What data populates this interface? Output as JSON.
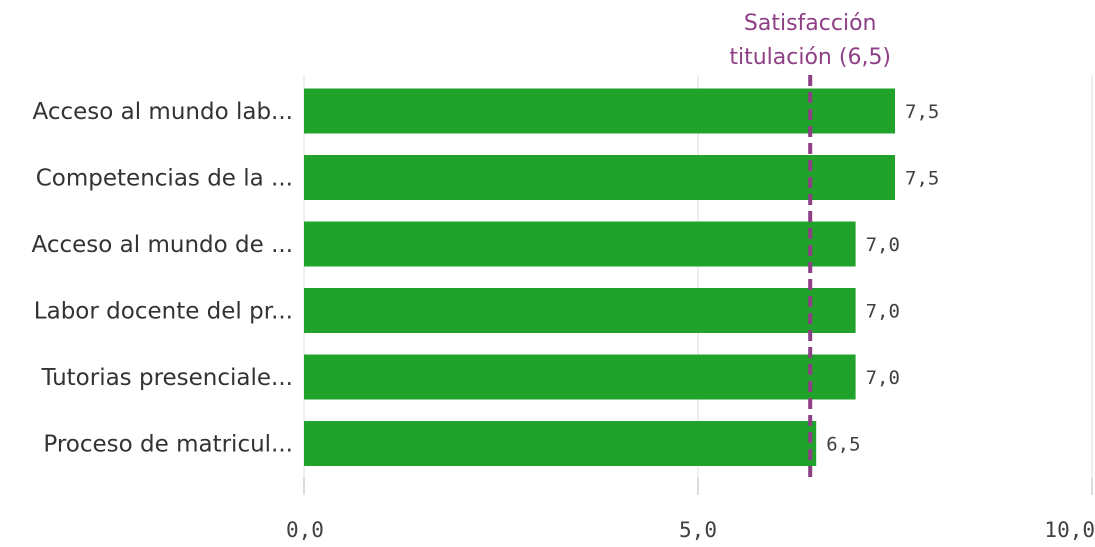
{
  "chart_data": {
    "type": "bar",
    "orientation": "horizontal",
    "categories": [
      "Acceso al mundo lab...",
      "Competencias de la ...",
      "Acceso al mundo de ...",
      "Labor docente del pr...",
      "Tutorias presenciale...",
      "Proceso de matricul..."
    ],
    "values": [
      7.5,
      7.5,
      7.0,
      7.0,
      7.0,
      6.5
    ],
    "value_labels": [
      "7,5",
      "7,5",
      "7,0",
      "7,0",
      "7,0",
      "6,5"
    ],
    "xlim": [
      0,
      10
    ],
    "ticks": [
      0,
      5,
      10
    ],
    "tick_labels": [
      "0,0",
      "5,0",
      "10,0"
    ],
    "grid": true,
    "bar_color": "#21a32b",
    "reference_line": {
      "value": 6.5,
      "label_line1": "Satisfacción",
      "label_line2": "titulación (6,5)",
      "color": "#8e3f86"
    }
  }
}
